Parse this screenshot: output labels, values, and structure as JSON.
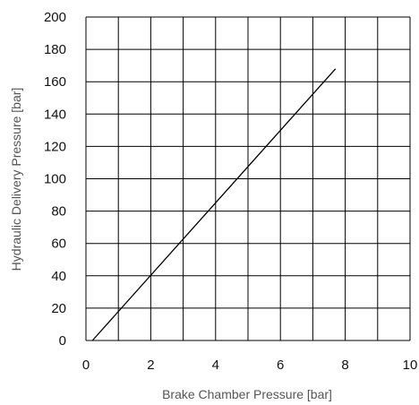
{
  "chart_data": {
    "type": "line",
    "title": "",
    "xlabel": "Brake Chamber Pressure [bar]",
    "ylabel": "Hydraulic Delivery Pressure [bar]",
    "xlim": [
      0,
      10
    ],
    "ylim": [
      0,
      200
    ],
    "x_ticks": [
      0,
      2,
      4,
      6,
      8,
      10
    ],
    "y_ticks": [
      0,
      20,
      40,
      60,
      80,
      100,
      120,
      140,
      160,
      180,
      200
    ],
    "grid": true,
    "x_grid_step": 1,
    "y_grid_step": 20,
    "series": [
      {
        "x": [
          0.2,
          7.7
        ],
        "y": [
          0,
          168
        ]
      }
    ],
    "colors": {
      "line": "#000000",
      "grid": "#000000",
      "tick_text": "#111111",
      "axis_title": "#555555"
    }
  }
}
